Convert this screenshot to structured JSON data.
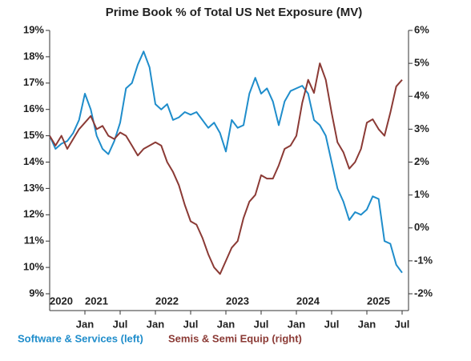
{
  "chart_data": {
    "type": "line",
    "title": "Prime Book % of Total US Net Exposure (MV)",
    "x": [
      "2020-07",
      "2020-08",
      "2020-09",
      "2020-10",
      "2020-11",
      "2020-12",
      "2021-01",
      "2021-02",
      "2021-03",
      "2021-04",
      "2021-05",
      "2021-06",
      "2021-07",
      "2021-08",
      "2021-09",
      "2021-10",
      "2021-11",
      "2021-12",
      "2022-01",
      "2022-02",
      "2022-03",
      "2022-04",
      "2022-05",
      "2022-06",
      "2022-07",
      "2022-08",
      "2022-09",
      "2022-10",
      "2022-11",
      "2022-12",
      "2023-01",
      "2023-02",
      "2023-03",
      "2023-04",
      "2023-05",
      "2023-06",
      "2023-07",
      "2023-08",
      "2023-09",
      "2023-10",
      "2023-11",
      "2023-12",
      "2024-01",
      "2024-02",
      "2024-03",
      "2024-04",
      "2024-05",
      "2024-06",
      "2024-07",
      "2024-08",
      "2024-09",
      "2024-10",
      "2024-11",
      "2024-12",
      "2025-01",
      "2025-02",
      "2025-03",
      "2025-04",
      "2025-05",
      "2025-06",
      "2025-07"
    ],
    "series": [
      {
        "name": "Software & Services (left)",
        "color": "#1f8dcb",
        "axis": "y",
        "values": [
          15.0,
          14.5,
          14.7,
          14.8,
          15.1,
          15.6,
          16.6,
          16.0,
          15.0,
          14.5,
          14.3,
          14.8,
          15.5,
          16.8,
          17.0,
          17.7,
          18.2,
          17.6,
          16.2,
          16.0,
          16.2,
          15.6,
          15.7,
          15.9,
          15.8,
          15.9,
          15.6,
          15.3,
          15.5,
          15.1,
          14.4,
          15.6,
          15.3,
          15.4,
          16.6,
          17.2,
          16.6,
          16.8,
          16.3,
          15.4,
          16.3,
          16.7,
          16.8,
          16.9,
          16.6,
          15.6,
          15.4,
          15.0,
          14.0,
          13.0,
          12.5,
          11.8,
          12.1,
          12.0,
          12.2,
          12.7,
          12.6,
          11.0,
          10.9,
          10.1,
          9.8
        ]
      },
      {
        "name": "Semis & Semi Equip (right)",
        "color": "#8b3a35",
        "axis": "y2",
        "values": [
          2.8,
          2.5,
          2.8,
          2.4,
          2.7,
          3.0,
          3.2,
          3.4,
          3.0,
          3.1,
          2.8,
          2.7,
          2.9,
          2.8,
          2.5,
          2.2,
          2.4,
          2.5,
          2.6,
          2.5,
          2.0,
          1.7,
          1.3,
          0.7,
          0.2,
          0.1,
          -0.3,
          -0.8,
          -1.2,
          -1.4,
          -1.0,
          -0.6,
          -0.4,
          0.3,
          0.8,
          1.0,
          1.6,
          1.5,
          1.5,
          1.9,
          2.4,
          2.5,
          2.8,
          3.8,
          4.5,
          4.1,
          5.0,
          4.5,
          3.5,
          2.6,
          2.3,
          1.8,
          2.0,
          2.4,
          3.2,
          3.3,
          3.0,
          2.8,
          3.5,
          4.3,
          4.5
        ]
      }
    ],
    "ylim": [
      9,
      19
    ],
    "yticks": [
      {
        "value": 9,
        "label": "9%"
      },
      {
        "value": 10,
        "label": "10%"
      },
      {
        "value": 11,
        "label": "11%"
      },
      {
        "value": 12,
        "label": "12%"
      },
      {
        "value": 13,
        "label": "13%"
      },
      {
        "value": 14,
        "label": "14%"
      },
      {
        "value": 15,
        "label": "15%"
      },
      {
        "value": 16,
        "label": "16%"
      },
      {
        "value": 17,
        "label": "17%"
      },
      {
        "value": 18,
        "label": "18%"
      },
      {
        "value": 19,
        "label": "19%"
      }
    ],
    "y2lim": [
      -2,
      6
    ],
    "y2ticks": [
      {
        "value": -2,
        "label": "-2%"
      },
      {
        "value": -1,
        "label": "-1%"
      },
      {
        "value": 0,
        "label": "0%"
      },
      {
        "value": 1,
        "label": "1%"
      },
      {
        "value": 2,
        "label": "2%"
      },
      {
        "value": 3,
        "label": "3%"
      },
      {
        "value": 4,
        "label": "4%"
      },
      {
        "value": 5,
        "label": "5%"
      },
      {
        "value": 6,
        "label": "6%"
      }
    ],
    "xticks": [
      {
        "value": "2021-01",
        "label": "Jan"
      },
      {
        "value": "2021-07",
        "label": "Jul"
      },
      {
        "value": "2022-01",
        "label": "Jan"
      },
      {
        "value": "2022-07",
        "label": "Jul"
      },
      {
        "value": "2023-01",
        "label": "Jan"
      },
      {
        "value": "2023-07",
        "label": "Jul"
      },
      {
        "value": "2024-01",
        "label": "Jan"
      },
      {
        "value": "2024-07",
        "label": "Jul"
      },
      {
        "value": "2025-01",
        "label": "Jan"
      },
      {
        "value": "2025-07",
        "label": "Jul"
      }
    ],
    "year_labels": [
      {
        "value": "2020-07",
        "label": "2020"
      },
      {
        "value": "2021-01",
        "label": "2021"
      },
      {
        "value": "2022-01",
        "label": "2022"
      },
      {
        "value": "2023-01",
        "label": "2023"
      },
      {
        "value": "2024-01",
        "label": "2024"
      },
      {
        "value": "2025-01",
        "label": "2025"
      }
    ],
    "grid": false
  }
}
